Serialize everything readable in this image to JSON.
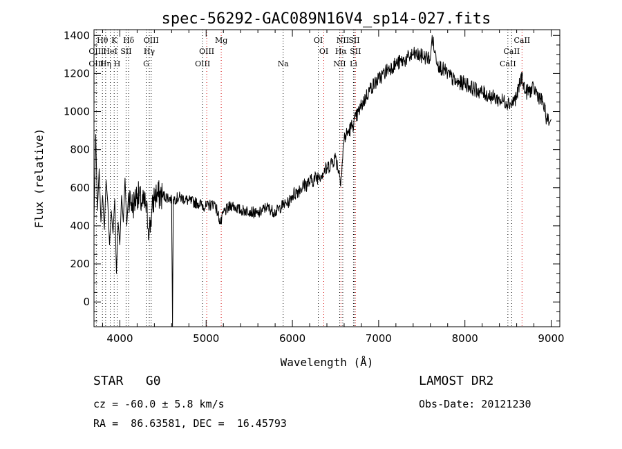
{
  "title": "spec-56292-GAC089N16V4_sp14-027.fits",
  "info": {
    "class_label": "STAR",
    "subclass": "G0",
    "cz_text": "cz = -60.0 ± 5.8 km/s",
    "radec_text": "RA =  86.63581, DEC =  16.45793",
    "survey": "LAMOST DR2",
    "obs_date": "Obs-Date: 20121230"
  },
  "chart_data": {
    "type": "line",
    "title": "spec-56292-GAC089N16V4_sp14-027.fits",
    "xlabel": "Wavelength (Å)",
    "ylabel": "Flux (relative)",
    "xlim": [
      3700,
      9100
    ],
    "ylim": [
      -130,
      1430
    ],
    "xticks": [
      4000,
      5000,
      6000,
      7000,
      8000,
      9000
    ],
    "yticks": [
      0,
      200,
      400,
      600,
      800,
      1000,
      1200,
      1400
    ],
    "series": [
      {
        "x": [
          3700,
          3720,
          3740,
          3760,
          3780,
          3800,
          3820,
          3840,
          3860,
          3880,
          3900,
          3920,
          3940,
          3960,
          3980,
          4000,
          4020,
          4040,
          4060,
          4080,
          4100,
          4150,
          4200,
          4250,
          4300,
          4340,
          4400,
          4500,
          4600,
          4610,
          4620,
          4700,
          4800,
          4900,
          5000,
          5100,
          5170,
          5200,
          5300,
          5400,
          5500,
          5600,
          5700,
          5800,
          5890,
          5950,
          6000,
          6100,
          6200,
          6300,
          6400,
          6500,
          6563,
          6600,
          6700,
          6800,
          6900,
          7000,
          7100,
          7200,
          7300,
          7400,
          7500,
          7600,
          7620,
          7650,
          7700,
          7800,
          7900,
          8000,
          8100,
          8200,
          8300,
          8400,
          8500,
          8542,
          8600,
          8662,
          8700,
          8800,
          8900,
          8950,
          8980,
          9000
        ],
        "y": [
          430,
          880,
          480,
          700,
          420,
          560,
          380,
          640,
          520,
          300,
          480,
          360,
          540,
          150,
          420,
          300,
          560,
          420,
          650,
          400,
          560,
          500,
          570,
          520,
          510,
          370,
          560,
          560,
          540,
          -130,
          540,
          550,
          530,
          520,
          500,
          520,
          410,
          470,
          510,
          480,
          480,
          460,
          500,
          470,
          510,
          520,
          560,
          600,
          630,
          660,
          700,
          760,
          640,
          860,
          930,
          1030,
          1120,
          1170,
          1220,
          1250,
          1270,
          1300,
          1290,
          1280,
          1400,
          1310,
          1240,
          1200,
          1150,
          1150,
          1120,
          1100,
          1080,
          1060,
          1050,
          1040,
          1080,
          1190,
          1100,
          1120,
          1050,
          960,
          940,
          960
        ]
      }
    ],
    "line_labels": [
      {
        "text": "Hθ",
        "wave": 3798,
        "row": 0
      },
      {
        "text": "OIII",
        "wave": 3727,
        "row": 1
      },
      {
        "text": "OIII",
        "wave": 3727,
        "row": 2
      },
      {
        "text": "K",
        "wave": 3934,
        "row": 0
      },
      {
        "text": "HeI",
        "wave": 3889,
        "row": 1
      },
      {
        "text": "Hη",
        "wave": 3835,
        "row": 2
      },
      {
        "text": "Hδ",
        "wave": 4102,
        "row": 0
      },
      {
        "text": "SII",
        "wave": 4072,
        "row": 1
      },
      {
        "text": "H",
        "wave": 3969,
        "row": 2
      },
      {
        "text": "OIII",
        "wave": 4363,
        "row": 0
      },
      {
        "text": "Hγ",
        "wave": 4341,
        "row": 1
      },
      {
        "text": "G",
        "wave": 4305,
        "row": 2
      },
      {
        "text": "Mg",
        "wave": 5175,
        "row": 0
      },
      {
        "text": "OIII",
        "wave": 5007,
        "row": 1
      },
      {
        "text": "OIII",
        "wave": 4959,
        "row": 2
      },
      {
        "text": "Na",
        "wave": 5893,
        "row": 2
      },
      {
        "text": "OI",
        "wave": 6300,
        "row": 0
      },
      {
        "text": "OI",
        "wave": 6364,
        "row": 1
      },
      {
        "text": "NII",
        "wave": 6584,
        "row": 0
      },
      {
        "text": "SII",
        "wave": 6716,
        "row": 0
      },
      {
        "text": "Hα",
        "wave": 6563,
        "row": 1
      },
      {
        "text": "SII",
        "wave": 6731,
        "row": 1
      },
      {
        "text": "NII",
        "wave": 6548,
        "row": 2
      },
      {
        "text": "Li",
        "wave": 6708,
        "row": 2
      },
      {
        "text": "CaII",
        "wave": 8662,
        "row": 0
      },
      {
        "text": "CaII",
        "wave": 8542,
        "row": 1
      },
      {
        "text": "CaII",
        "wave": 8498,
        "row": 2
      }
    ],
    "line_markers": [
      {
        "wave": 3727,
        "color": "#000000"
      },
      {
        "wave": 3798,
        "color": "#000000"
      },
      {
        "wave": 3835,
        "color": "#000000"
      },
      {
        "wave": 3889,
        "color": "#000000"
      },
      {
        "wave": 3934,
        "color": "#000000"
      },
      {
        "wave": 3969,
        "color": "#000000"
      },
      {
        "wave": 4072,
        "color": "#000000"
      },
      {
        "wave": 4102,
        "color": "#000000"
      },
      {
        "wave": 4305,
        "color": "#000000"
      },
      {
        "wave": 4341,
        "color": "#000000"
      },
      {
        "wave": 4363,
        "color": "#000000"
      },
      {
        "wave": 4959,
        "color": "#000000"
      },
      {
        "wave": 5007,
        "color": "#d40000"
      },
      {
        "wave": 5175,
        "color": "#d40000"
      },
      {
        "wave": 5893,
        "color": "#000000"
      },
      {
        "wave": 6300,
        "color": "#000000"
      },
      {
        "wave": 6364,
        "color": "#d40000"
      },
      {
        "wave": 6548,
        "color": "#000000"
      },
      {
        "wave": 6563,
        "color": "#d40000"
      },
      {
        "wave": 6584,
        "color": "#000000"
      },
      {
        "wave": 6708,
        "color": "#000000"
      },
      {
        "wave": 6716,
        "color": "#000000"
      },
      {
        "wave": 6731,
        "color": "#d40000"
      },
      {
        "wave": 8498,
        "color": "#000000"
      },
      {
        "wave": 8542,
        "color": "#000000"
      },
      {
        "wave": 8662,
        "color": "#d40000"
      }
    ]
  }
}
